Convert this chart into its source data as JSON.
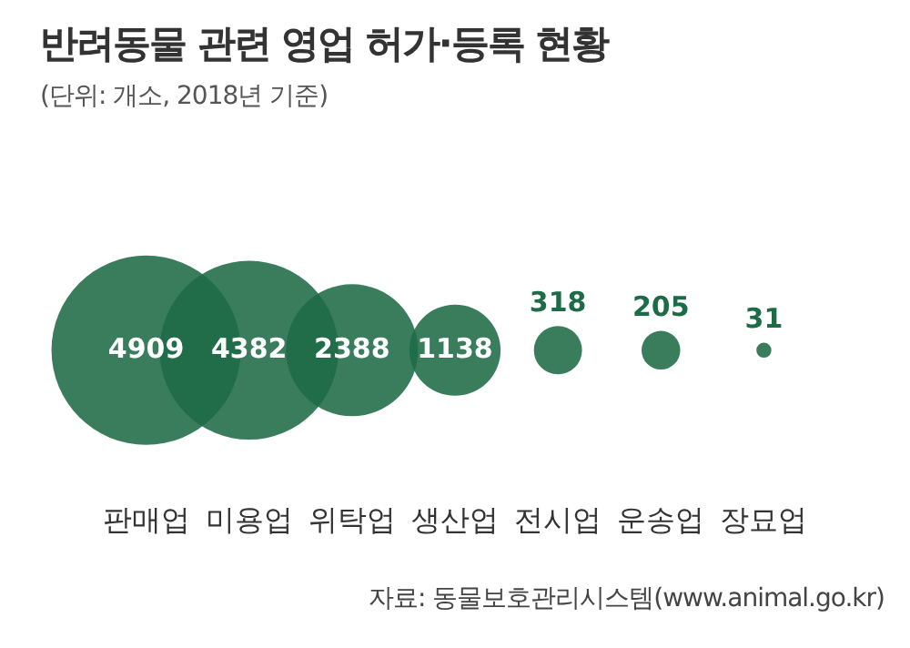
{
  "chart_data": {
    "type": "other",
    "title": "반려동물 관련 영업 허가·등록 현황",
    "subtitle": "(단위: 개소, 2018년 기준)",
    "categories": [
      "판매업",
      "미용업",
      "위탁업",
      "생산업",
      "전시업",
      "운송업",
      "장묘업"
    ],
    "values": [
      4909,
      4382,
      2388,
      1138,
      318,
      205,
      31
    ],
    "data_labels": true,
    "color": "#1e6b47",
    "legend": false,
    "annotations": [
      "자료: 동물보호관리시스템(www.animal.go.kr)"
    ]
  }
}
